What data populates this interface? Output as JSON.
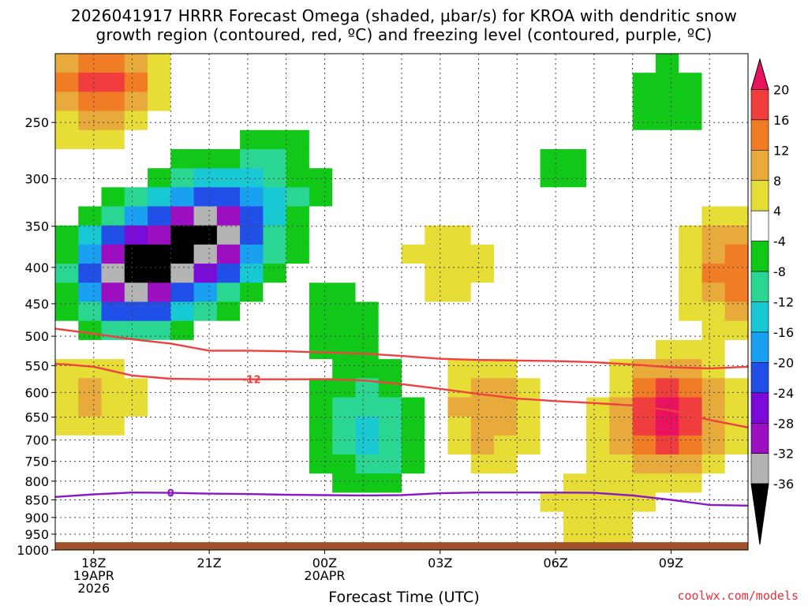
{
  "title": {
    "line1": "2026041917 HRRR Forecast Omega (shaded, μbar/s) for KROA with dendritic snow",
    "line2": "growth region (contoured, red, ºC) and freezing level (contoured, purple, ºC)"
  },
  "credit": "coolwx.com/models",
  "chart_data": {
    "type": "heatmap",
    "title": "2026041917 HRRR Forecast Omega (shaded, μbar/s) for KROA with dendritic snow growth region (contoured, red, ºC) and freezing level (contoured, purple, ºC)",
    "xlabel": "Forecast Time (UTC)",
    "ylabel": "",
    "x_ticks": [
      {
        "hour": 1,
        "label": "18Z",
        "sub": [
          "19APR",
          "2026"
        ]
      },
      {
        "hour": 4,
        "label": "21Z",
        "sub": []
      },
      {
        "hour": 7,
        "label": "00Z",
        "sub": [
          "20APR"
        ]
      },
      {
        "hour": 10,
        "label": "03Z",
        "sub": []
      },
      {
        "hour": 13,
        "label": "06Z",
        "sub": []
      },
      {
        "hour": 16,
        "label": "09Z",
        "sub": []
      }
    ],
    "xlim": [
      0,
      18
    ],
    "y_ticks": [
      250,
      300,
      350,
      400,
      450,
      500,
      550,
      600,
      650,
      700,
      750,
      800,
      850,
      900,
      950,
      1000
    ],
    "ylim": [
      200,
      1000
    ],
    "y_axis": "pressure (hPa), log scale, inverted",
    "colorbar": {
      "labels": [
        20,
        16,
        12,
        8,
        4,
        -4,
        -8,
        -12,
        -16,
        -20,
        -24,
        -28,
        -32,
        -36
      ],
      "colors": [
        "#e8125f",
        "#f03d3d",
        "#f07d26",
        "#e8aa3a",
        "#e6dd37",
        "#ffffff",
        "#11c818",
        "#2bd692",
        "#18c8d2",
        "#1aa0f0",
        "#2050e8",
        "#7a0bd8",
        "#9b0fc0",
        "#b4b4b4",
        "#000000"
      ]
    },
    "omega_field_note": "values in μbar/s",
    "omega_centers": [
      {
        "hour": 2.0,
        "p": 410,
        "value": -36
      },
      {
        "hour": 4.0,
        "p": 360,
        "value": -34
      },
      {
        "hour": 5.8,
        "p": 300,
        "value": -8
      },
      {
        "hour": 8.2,
        "p": 680,
        "value": -14
      },
      {
        "hour": 7.6,
        "p": 470,
        "value": -6
      },
      {
        "hour": 16.0,
        "p": 650,
        "value": 22
      },
      {
        "hour": 17.8,
        "p": 400,
        "value": 16
      },
      {
        "hour": 11.2,
        "p": 640,
        "value": 12
      },
      {
        "hour": 14.0,
        "p": 880,
        "value": 7
      },
      {
        "hour": 10.2,
        "p": 390,
        "value": 7
      },
      {
        "hour": 1.0,
        "p": 600,
        "value": 9
      },
      {
        "hour": 1.2,
        "p": 220,
        "value": 18
      },
      {
        "hour": 16.0,
        "p": 230,
        "value": -6
      },
      {
        "hour": 13.1,
        "p": 290,
        "value": -5
      }
    ],
    "contours": [
      {
        "name": "-12",
        "color": "#f04040",
        "label": "-12",
        "x": [
          0,
          0.3,
          1,
          2,
          3,
          4,
          5,
          6,
          7,
          8,
          9,
          10,
          11,
          12,
          13,
          14,
          15,
          16,
          17,
          18
        ],
        "p": [
          547,
          548,
          552,
          568,
          574,
          575,
          575,
          575,
          575,
          577,
          584,
          593,
          603,
          612,
          617,
          621,
          626,
          636,
          656,
          672
        ]
      },
      {
        "name": "",
        "color": "#f04040",
        "label": "",
        "x": [
          0,
          1,
          2,
          3,
          4,
          5,
          6,
          7,
          8,
          9,
          10,
          11,
          12,
          13,
          14,
          15,
          16,
          17,
          18
        ],
        "p": [
          488,
          496,
          505,
          512,
          524,
          524,
          525,
          527,
          529,
          533,
          538,
          540,
          541,
          542,
          544,
          548,
          553,
          555,
          552
        ]
      },
      {
        "name": "0",
        "color": "#8a18c8",
        "label": "0",
        "x": [
          0,
          1,
          2,
          3,
          4,
          5,
          6,
          7,
          8,
          9,
          10,
          11,
          12,
          13,
          14,
          15,
          16,
          17,
          18
        ],
        "p": [
          842,
          835,
          830,
          831,
          833,
          834,
          836,
          837,
          838,
          837,
          832,
          830,
          830,
          830,
          831,
          838,
          850,
          864,
          866
        ]
      }
    ],
    "ground_p": 975,
    "grid": true
  }
}
